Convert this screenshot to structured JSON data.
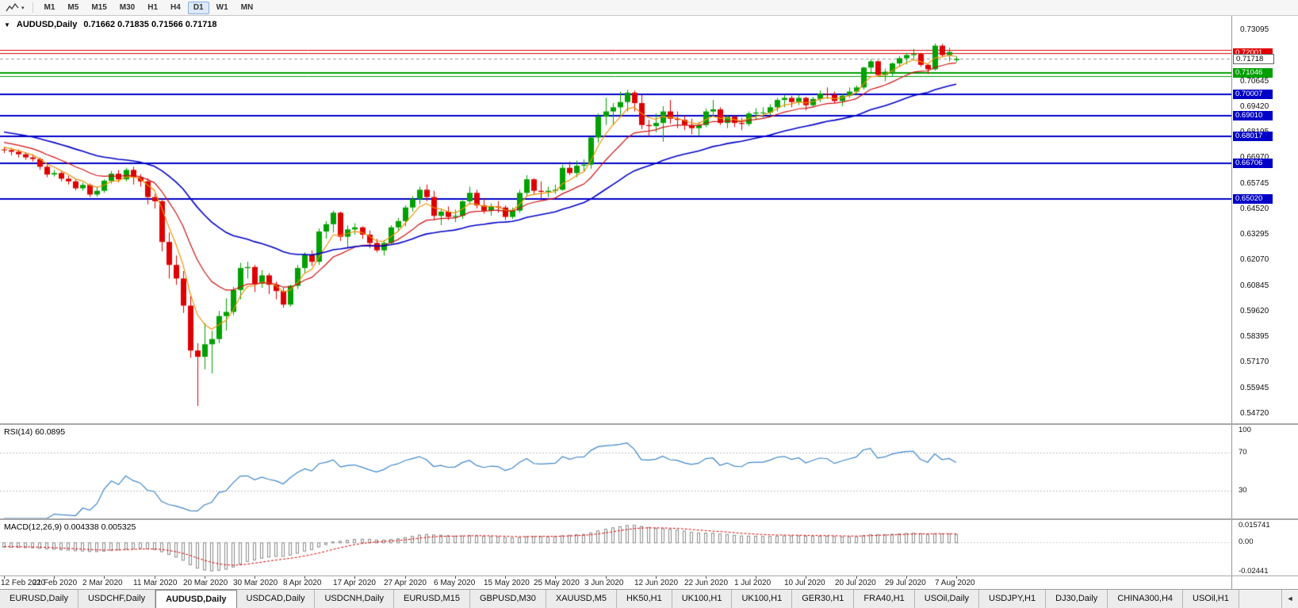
{
  "toolbar": {
    "timeframes": [
      "M1",
      "M5",
      "M15",
      "M30",
      "H1",
      "H4",
      "D1",
      "W1",
      "MN"
    ],
    "active_timeframe": "D1"
  },
  "chart": {
    "collapse_arrow": "▼",
    "title_symbol": "AUDUSD,Daily",
    "title_ohlc": "0.71662 0.71835 0.71566 0.71718"
  },
  "chart_data": {
    "type": "candlestick",
    "symbol": "AUDUSD",
    "period": "Daily",
    "x_labels": [
      "12 Feb 2020",
      "21 Feb 2020",
      "2 Mar 2020",
      "11 Mar 2020",
      "20 Mar 2020",
      "30 Mar 2020",
      "8 Apr 2020",
      "17 Apr 2020",
      "27 Apr 2020",
      "6 May 2020",
      "15 May 2020",
      "25 May 2020",
      "3 Jun 2020",
      "12 Jun 2020",
      "22 Jun 2020",
      "1 Jul 2020",
      "10 Jul 2020",
      "20 Jul 2020",
      "29 Jul 2020",
      "7 Aug 2020"
    ],
    "label_every": 7,
    "candles": [
      [
        0.6738,
        0.675,
        0.672,
        0.6735
      ],
      [
        0.6735,
        0.6745,
        0.671,
        0.6727
      ],
      [
        0.6727,
        0.6738,
        0.67,
        0.6715
      ],
      [
        0.6715,
        0.6725,
        0.6688,
        0.67
      ],
      [
        0.67,
        0.6715,
        0.668,
        0.6692
      ],
      [
        0.6692,
        0.67,
        0.664,
        0.6655
      ],
      [
        0.6655,
        0.6665,
        0.6605,
        0.6618
      ],
      [
        0.6618,
        0.664,
        0.6608,
        0.6625
      ],
      [
        0.6625,
        0.6632,
        0.6585,
        0.6598
      ],
      [
        0.6598,
        0.6612,
        0.657,
        0.6585
      ],
      [
        0.6585,
        0.6595,
        0.6542,
        0.6552
      ],
      [
        0.6552,
        0.658,
        0.654,
        0.6568
      ],
      [
        0.6568,
        0.6575,
        0.651,
        0.6522
      ],
      [
        0.6522,
        0.656,
        0.6512,
        0.654
      ],
      [
        0.654,
        0.6595,
        0.653,
        0.6588
      ],
      [
        0.6588,
        0.6635,
        0.6575,
        0.6622
      ],
      [
        0.6622,
        0.664,
        0.658,
        0.6595
      ],
      [
        0.6595,
        0.665,
        0.6585,
        0.664
      ],
      [
        0.664,
        0.6655,
        0.657,
        0.6605
      ],
      [
        0.6605,
        0.662,
        0.656,
        0.6585
      ],
      [
        0.6585,
        0.66,
        0.6475,
        0.651
      ],
      [
        0.651,
        0.6525,
        0.6455,
        0.649
      ],
      [
        0.649,
        0.65,
        0.625,
        0.6295
      ],
      [
        0.6295,
        0.634,
        0.612,
        0.6185
      ],
      [
        0.6185,
        0.623,
        0.609,
        0.612
      ],
      [
        0.612,
        0.6155,
        0.5955,
        0.599
      ],
      [
        0.599,
        0.6035,
        0.574,
        0.5775
      ],
      [
        0.5775,
        0.581,
        0.551,
        0.5745
      ],
      [
        0.5745,
        0.5905,
        0.5685,
        0.5805
      ],
      [
        0.5805,
        0.587,
        0.5665,
        0.583
      ],
      [
        0.583,
        0.5965,
        0.581,
        0.594
      ],
      [
        0.594,
        0.6025,
        0.587,
        0.596
      ],
      [
        0.596,
        0.608,
        0.5945,
        0.6065
      ],
      [
        0.6065,
        0.6195,
        0.602,
        0.617
      ],
      [
        0.617,
        0.62,
        0.612,
        0.6175
      ],
      [
        0.6175,
        0.6185,
        0.6055,
        0.6095
      ],
      [
        0.6095,
        0.616,
        0.6075,
        0.6135
      ],
      [
        0.6135,
        0.6145,
        0.6045,
        0.609
      ],
      [
        0.609,
        0.6105,
        0.602,
        0.606
      ],
      [
        0.606,
        0.6075,
        0.598,
        0.5995
      ],
      [
        0.5995,
        0.609,
        0.5985,
        0.6085
      ],
      [
        0.6085,
        0.6185,
        0.607,
        0.617
      ],
      [
        0.617,
        0.6245,
        0.6145,
        0.6235
      ],
      [
        0.6235,
        0.6255,
        0.618,
        0.62
      ],
      [
        0.62,
        0.636,
        0.6185,
        0.6345
      ],
      [
        0.6345,
        0.6395,
        0.631,
        0.638
      ],
      [
        0.638,
        0.6445,
        0.634,
        0.6435
      ],
      [
        0.6435,
        0.644,
        0.63,
        0.632
      ],
      [
        0.632,
        0.6375,
        0.6265,
        0.6355
      ],
      [
        0.6355,
        0.6385,
        0.633,
        0.6365
      ],
      [
        0.6365,
        0.637,
        0.631,
        0.633
      ],
      [
        0.633,
        0.635,
        0.6265,
        0.629
      ],
      [
        0.629,
        0.631,
        0.6245,
        0.6255
      ],
      [
        0.6255,
        0.6305,
        0.623,
        0.629
      ],
      [
        0.629,
        0.6375,
        0.628,
        0.6365
      ],
      [
        0.6365,
        0.641,
        0.6345,
        0.6395
      ],
      [
        0.6395,
        0.647,
        0.637,
        0.646
      ],
      [
        0.646,
        0.6515,
        0.644,
        0.65
      ],
      [
        0.65,
        0.656,
        0.6475,
        0.6545
      ],
      [
        0.6545,
        0.657,
        0.649,
        0.651
      ],
      [
        0.651,
        0.654,
        0.64,
        0.642
      ],
      [
        0.642,
        0.6455,
        0.6375,
        0.644
      ],
      [
        0.644,
        0.6465,
        0.64,
        0.6415
      ],
      [
        0.6415,
        0.645,
        0.639,
        0.642
      ],
      [
        0.642,
        0.6495,
        0.6405,
        0.649
      ],
      [
        0.649,
        0.656,
        0.6475,
        0.653
      ],
      [
        0.653,
        0.6545,
        0.6455,
        0.647
      ],
      [
        0.647,
        0.6505,
        0.643,
        0.6445
      ],
      [
        0.6445,
        0.648,
        0.642,
        0.6465
      ],
      [
        0.6465,
        0.649,
        0.6435,
        0.646
      ],
      [
        0.646,
        0.647,
        0.64,
        0.6415
      ],
      [
        0.6415,
        0.646,
        0.6405,
        0.6445
      ],
      [
        0.6445,
        0.6545,
        0.6435,
        0.653
      ],
      [
        0.653,
        0.6615,
        0.6515,
        0.6595
      ],
      [
        0.6595,
        0.66,
        0.652,
        0.654
      ],
      [
        0.654,
        0.6585,
        0.6505,
        0.6535
      ],
      [
        0.6535,
        0.656,
        0.651,
        0.654
      ],
      [
        0.654,
        0.657,
        0.6525,
        0.6545
      ],
      [
        0.6545,
        0.6665,
        0.654,
        0.665
      ],
      [
        0.665,
        0.668,
        0.6615,
        0.6625
      ],
      [
        0.6625,
        0.6685,
        0.6605,
        0.666
      ],
      [
        0.666,
        0.669,
        0.663,
        0.6665
      ],
      [
        0.6665,
        0.68,
        0.6645,
        0.6795
      ],
      [
        0.6795,
        0.691,
        0.677,
        0.6895
      ],
      [
        0.6895,
        0.6985,
        0.6855,
        0.692
      ],
      [
        0.692,
        0.696,
        0.6855,
        0.694
      ],
      [
        0.694,
        0.7015,
        0.69,
        0.6965
      ],
      [
        0.6965,
        0.7025,
        0.692,
        0.701
      ],
      [
        0.701,
        0.702,
        0.692,
        0.696
      ],
      [
        0.696,
        0.7,
        0.6835,
        0.6855
      ],
      [
        0.6855,
        0.688,
        0.68,
        0.685
      ],
      [
        0.685,
        0.691,
        0.682,
        0.6865
      ],
      [
        0.6865,
        0.6945,
        0.6775,
        0.692
      ],
      [
        0.692,
        0.6975,
        0.686,
        0.6885
      ],
      [
        0.6885,
        0.692,
        0.684,
        0.688
      ],
      [
        0.688,
        0.69,
        0.683,
        0.6855
      ],
      [
        0.6855,
        0.6885,
        0.681,
        0.684
      ],
      [
        0.684,
        0.687,
        0.6805,
        0.6855
      ],
      [
        0.6855,
        0.6935,
        0.6845,
        0.692
      ],
      [
        0.692,
        0.6975,
        0.69,
        0.693
      ],
      [
        0.693,
        0.694,
        0.6855,
        0.6865
      ],
      [
        0.6865,
        0.6905,
        0.684,
        0.6895
      ],
      [
        0.6895,
        0.69,
        0.6845,
        0.6865
      ],
      [
        0.6865,
        0.689,
        0.683,
        0.686
      ],
      [
        0.686,
        0.692,
        0.685,
        0.691
      ],
      [
        0.691,
        0.6935,
        0.688,
        0.6915
      ],
      [
        0.6915,
        0.694,
        0.689,
        0.6915
      ],
      [
        0.6915,
        0.6955,
        0.69,
        0.694
      ],
      [
        0.694,
        0.6985,
        0.692,
        0.6975
      ],
      [
        0.6975,
        0.7,
        0.694,
        0.6985
      ],
      [
        0.6985,
        0.6995,
        0.694,
        0.6965
      ],
      [
        0.6965,
        0.7,
        0.695,
        0.6985
      ],
      [
        0.6985,
        0.699,
        0.6925,
        0.695
      ],
      [
        0.695,
        0.699,
        0.694,
        0.698
      ],
      [
        0.698,
        0.702,
        0.6965,
        0.7005
      ],
      [
        0.7005,
        0.7035,
        0.698,
        0.7
      ],
      [
        0.7,
        0.7015,
        0.696,
        0.697
      ],
      [
        0.697,
        0.7005,
        0.6945,
        0.6995
      ],
      [
        0.6995,
        0.7035,
        0.6985,
        0.7015
      ],
      [
        0.7015,
        0.7045,
        0.7,
        0.7035
      ],
      [
        0.7035,
        0.7135,
        0.7025,
        0.713
      ],
      [
        0.713,
        0.717,
        0.71,
        0.716
      ],
      [
        0.716,
        0.7165,
        0.7085,
        0.7095
      ],
      [
        0.7095,
        0.7125,
        0.7065,
        0.711
      ],
      [
        0.711,
        0.7155,
        0.709,
        0.715
      ],
      [
        0.715,
        0.7185,
        0.7135,
        0.7175
      ],
      [
        0.7175,
        0.72,
        0.7145,
        0.719
      ],
      [
        0.719,
        0.722,
        0.717,
        0.7195
      ],
      [
        0.7195,
        0.72,
        0.7135,
        0.7143
      ],
      [
        0.7143,
        0.715,
        0.71,
        0.7122
      ],
      [
        0.7122,
        0.7245,
        0.7115,
        0.7235
      ],
      [
        0.7235,
        0.7243,
        0.718,
        0.719
      ],
      [
        0.719,
        0.7225,
        0.716,
        0.7205
      ],
      [
        0.71662,
        0.71835,
        0.71566,
        0.71718
      ]
    ],
    "warmup": {
      "start": 0.696,
      "end": 0.6745,
      "count": 40
    },
    "moving_averages": [
      {
        "name": "MA fast",
        "method": "ema",
        "period": 5,
        "color": "#F09000",
        "width": 1.2
      },
      {
        "name": "MA medium",
        "method": "ema",
        "period": 13,
        "color": "#D01010",
        "width": 1.2
      },
      {
        "name": "MA slow",
        "method": "ema",
        "period": 34,
        "color": "#0000C8",
        "width": 1.6
      }
    ],
    "price_axis": {
      "ticks": [
        0.73095,
        0.7187,
        0.70645,
        0.6942,
        0.68195,
        0.6697,
        0.65745,
        0.6452,
        0.63295,
        0.6207,
        0.60845,
        0.5962,
        0.58395,
        0.5717,
        0.55945,
        0.5472
      ],
      "decimals": 5
    },
    "levels": [
      {
        "price": 0.7215,
        "color": "#E00000",
        "width": 1,
        "tag": false
      },
      {
        "price": 0.72001,
        "color": "#E00000",
        "width": 1,
        "tag": true
      },
      {
        "price": 0.71046,
        "color": "#00A000",
        "width": 2,
        "tag": true
      },
      {
        "price": 0.7088,
        "color": "#00A000",
        "width": 1,
        "tag": false
      },
      {
        "price": 0.70007,
        "color": "#0000C8",
        "width": 2,
        "tag": true
      },
      {
        "price": 0.6901,
        "color": "#0000C8",
        "width": 2,
        "tag": true
      },
      {
        "price": 0.68017,
        "color": "#0000C8",
        "width": 2,
        "tag": true
      },
      {
        "price": 0.66706,
        "color": "#0000C8",
        "width": 2,
        "tag": true
      },
      {
        "price": 0.6502,
        "color": "#0000C8",
        "width": 2,
        "tag": true
      }
    ],
    "bid": {
      "price": 0.71718
    },
    "candle_colors": {
      "up": "#00A000",
      "down": "#DE0000"
    },
    "rsi": {
      "label": "RSI(14) 60.0895",
      "period": 14,
      "levels": [
        70,
        30
      ],
      "scale_labels": [
        "100",
        "70",
        "30"
      ],
      "color": "#3E86C8"
    },
    "macd": {
      "label": "MACD(12,26,9) 0.004338 0.005325",
      "fast": 12,
      "slow": 26,
      "signal_period": 9,
      "ylim": [
        -0.02441,
        0.015741
      ],
      "scale_labels": [
        "0.015741",
        "0.00",
        "-0.02441"
      ],
      "histogram_color": "#8a8a8a",
      "signal_color": "#E00000"
    }
  },
  "tabs": {
    "items": [
      "EURUSD,Daily",
      "USDCHF,Daily",
      "AUDUSD,Daily",
      "USDCAD,Daily",
      "USDCNH,Daily",
      "EURUSD,M15",
      "GBPUSD,M30",
      "XAUUSD,M5",
      "HK50,H1",
      "UK100,H1",
      "UK100,H1",
      "GER30,H1",
      "FRA40,H1",
      "USOil,Daily",
      "USDJPY,H1",
      "DJ30,Daily",
      "CHINA300,H4",
      "USOil,H1"
    ],
    "active_index": 2,
    "scroll_left_arrow": "◄"
  }
}
